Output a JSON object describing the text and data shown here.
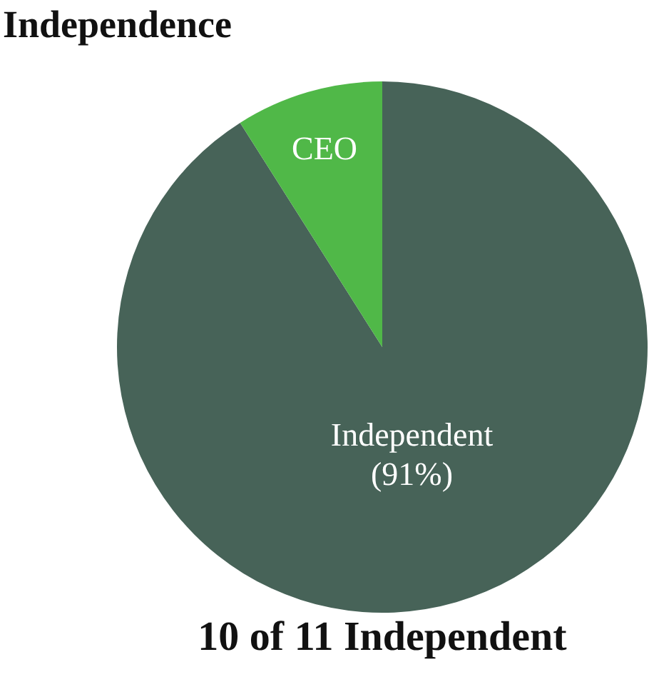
{
  "chart_data": {
    "type": "pie",
    "title": "Independence",
    "categories": [
      "Independent",
      "CEO"
    ],
    "values": [
      91,
      9
    ],
    "colors": [
      "#476358",
      "#50b848"
    ],
    "value_labels": [
      "(91%)",
      null
    ],
    "annotations": [
      "10 of 11 Independent"
    ],
    "legend": false
  }
}
